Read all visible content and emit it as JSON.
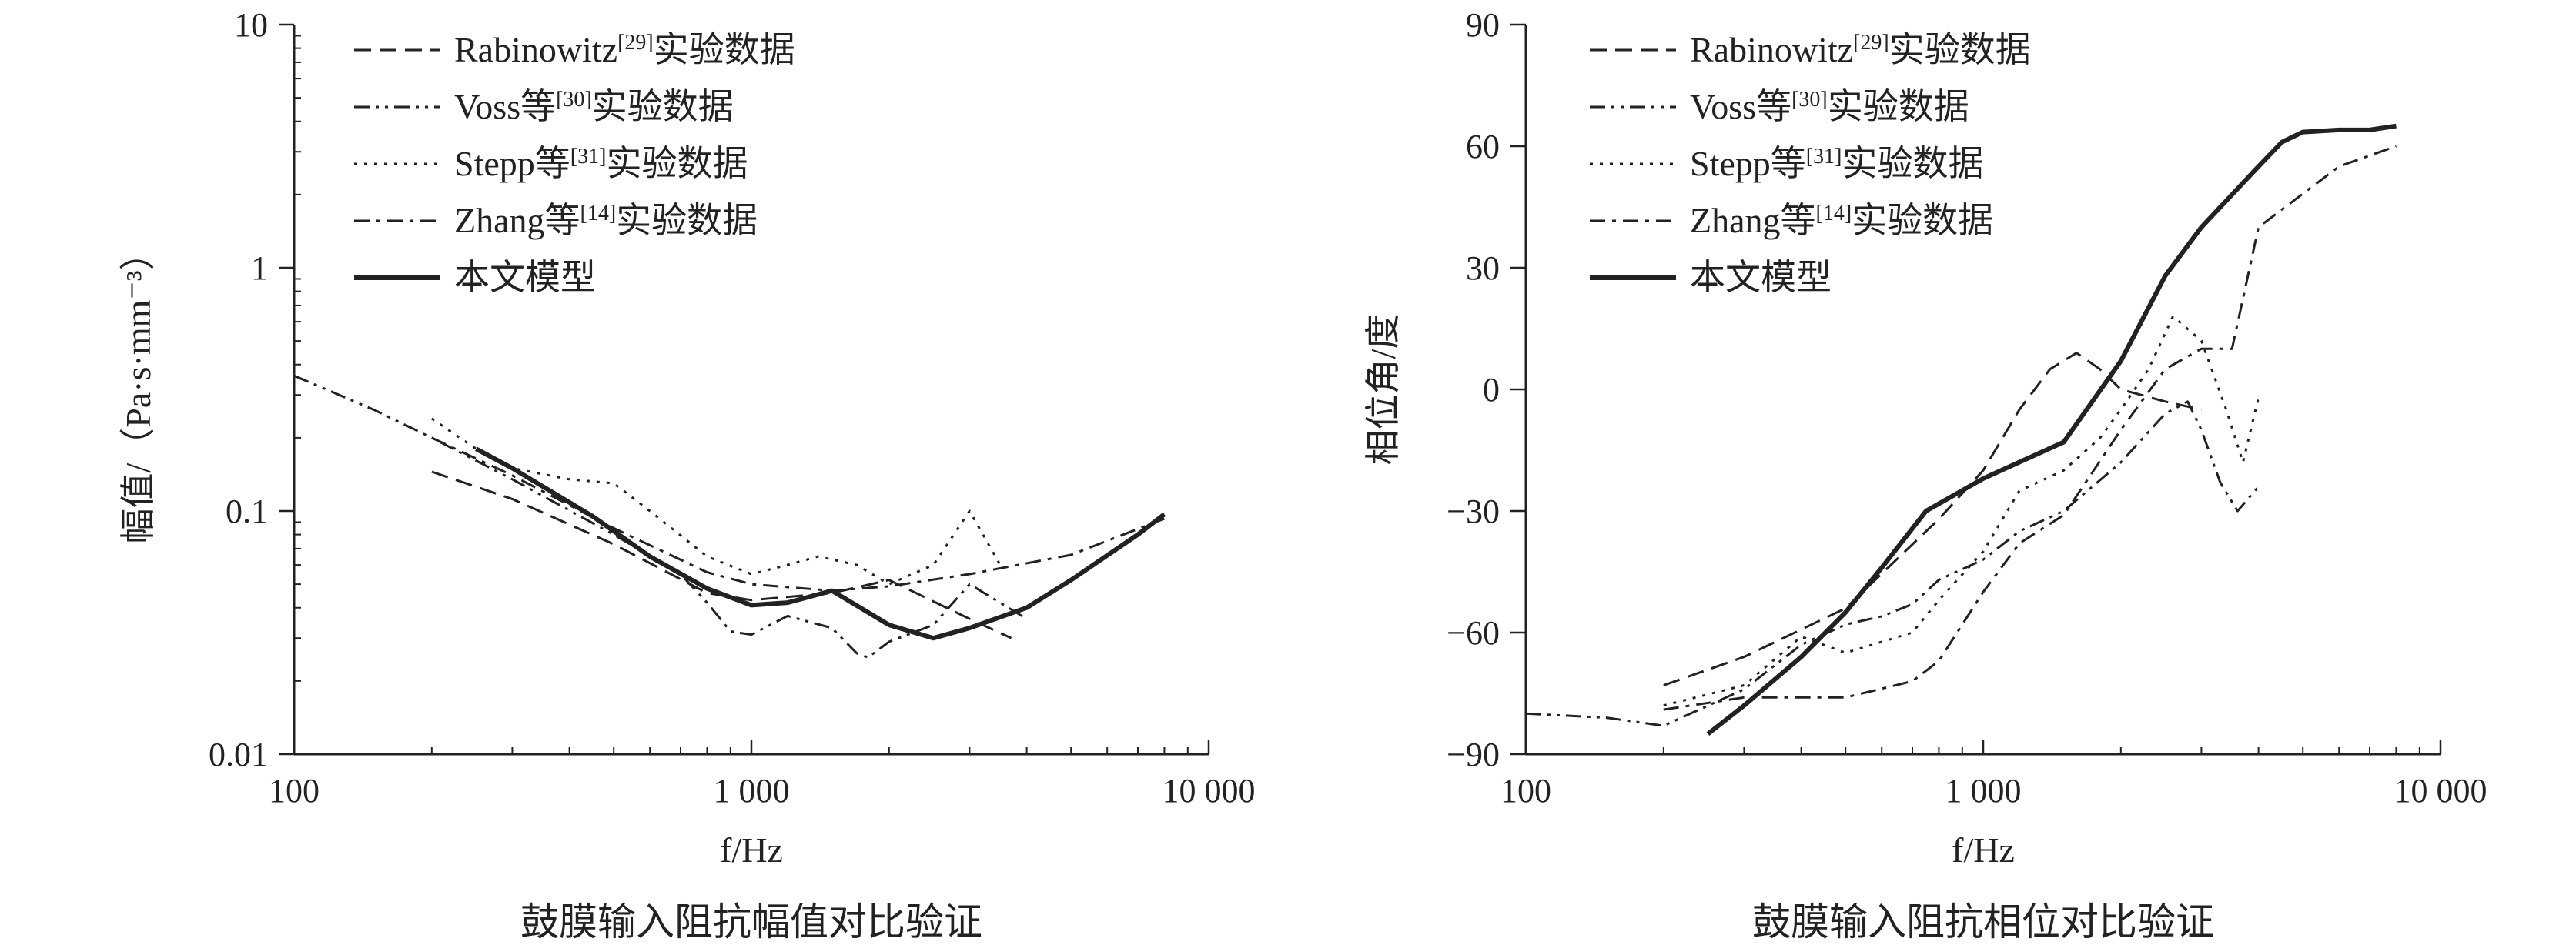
{
  "chart_data": [
    {
      "type": "line",
      "caption": "鼓膜输入阻抗幅值对比验证",
      "xlabel": "f/Hz",
      "ylabel": "幅值/（Pa·s·mm⁻³）",
      "xscale": "log",
      "yscale": "log",
      "xlim": [
        100,
        10000
      ],
      "ylim": [
        0.01,
        10
      ],
      "xticks": [
        100,
        1000,
        10000
      ],
      "xtick_labels": [
        "100",
        "1 000",
        "10 000"
      ],
      "yticks": [
        0.01,
        0.1,
        1,
        10
      ],
      "ytick_labels": [
        "0.01",
        "0.1",
        "1",
        "10"
      ],
      "grid": false,
      "legend_position": "top-left",
      "series": [
        {
          "name": "Rabinowitz[29]实验数据",
          "style": "dashed",
          "points": [
            [
              200,
              0.145
            ],
            [
              300,
              0.112
            ],
            [
              500,
              0.073
            ],
            [
              800,
              0.046
            ],
            [
              1000,
              0.043
            ],
            [
              1500,
              0.046
            ],
            [
              2000,
              0.052
            ],
            [
              3000,
              0.036
            ],
            [
              3700,
              0.03
            ]
          ]
        },
        {
          "name": "Voss等[30]实验数据",
          "style": "dash-dot-dot",
          "points": [
            [
              100,
              0.36
            ],
            [
              150,
              0.26
            ],
            [
              200,
              0.2
            ],
            [
              300,
              0.135
            ],
            [
              500,
              0.08
            ],
            [
              700,
              0.055
            ],
            [
              800,
              0.042
            ],
            [
              900,
              0.032
            ],
            [
              1000,
              0.031
            ],
            [
              1200,
              0.037
            ],
            [
              1500,
              0.033
            ],
            [
              1700,
              0.026
            ],
            [
              1800,
              0.025
            ],
            [
              2000,
              0.029
            ],
            [
              2500,
              0.034
            ],
            [
              3000,
              0.05
            ],
            [
              4000,
              0.036
            ]
          ]
        },
        {
          "name": "Stepp等[31]实验数据",
          "style": "dotted",
          "points": [
            [
              200,
              0.24
            ],
            [
              250,
              0.18
            ],
            [
              300,
              0.15
            ],
            [
              400,
              0.135
            ],
            [
              500,
              0.13
            ],
            [
              600,
              0.1
            ],
            [
              800,
              0.065
            ],
            [
              1000,
              0.055
            ],
            [
              1200,
              0.06
            ],
            [
              1400,
              0.065
            ],
            [
              1700,
              0.06
            ],
            [
              2000,
              0.05
            ],
            [
              2500,
              0.06
            ],
            [
              3000,
              0.1
            ],
            [
              3500,
              0.06
            ]
          ]
        },
        {
          "name": "Zhang等[14]实验数据",
          "style": "dash-dot",
          "points": [
            [
              200,
              0.2
            ],
            [
              300,
              0.14
            ],
            [
              500,
              0.085
            ],
            [
              800,
              0.056
            ],
            [
              1000,
              0.05
            ],
            [
              1500,
              0.047
            ],
            [
              2000,
              0.049
            ],
            [
              3000,
              0.055
            ],
            [
              5000,
              0.066
            ],
            [
              8000,
              0.093
            ]
          ]
        },
        {
          "name": "本文模型",
          "style": "solid",
          "points": [
            [
              250,
              0.18
            ],
            [
              300,
              0.15
            ],
            [
              450,
              0.095
            ],
            [
              600,
              0.065
            ],
            [
              800,
              0.048
            ],
            [
              1000,
              0.041
            ],
            [
              1200,
              0.042
            ],
            [
              1500,
              0.047
            ],
            [
              2000,
              0.034
            ],
            [
              2500,
              0.03
            ],
            [
              3000,
              0.033
            ],
            [
              4000,
              0.04
            ],
            [
              5000,
              0.052
            ],
            [
              7000,
              0.08
            ],
            [
              8000,
              0.097
            ]
          ]
        }
      ]
    },
    {
      "type": "line",
      "caption": "鼓膜输入阻抗相位对比验证",
      "xlabel": "f/Hz",
      "ylabel": "相位角/度",
      "xscale": "log",
      "yscale": "linear",
      "xlim": [
        100,
        10000
      ],
      "ylim": [
        -90,
        90
      ],
      "xticks": [
        100,
        1000,
        10000
      ],
      "xtick_labels": [
        "100",
        "1 000",
        "10 000"
      ],
      "yticks": [
        -90,
        -60,
        -30,
        0,
        30,
        60,
        90
      ],
      "ytick_labels": [
        "−90",
        "−60",
        "−30",
        "0",
        "30",
        "60",
        "90"
      ],
      "grid": false,
      "legend_position": "top-left",
      "series": [
        {
          "name": "Rabinowitz[29]实验数据",
          "style": "dashed",
          "points": [
            [
              200,
              -73
            ],
            [
              300,
              -66
            ],
            [
              500,
              -54
            ],
            [
              800,
              -32
            ],
            [
              1000,
              -20
            ],
            [
              1200,
              -5
            ],
            [
              1400,
              5
            ],
            [
              1600,
              9
            ],
            [
              1800,
              5
            ],
            [
              2000,
              0
            ],
            [
              2500,
              -3
            ],
            [
              3000,
              -5
            ]
          ]
        },
        {
          "name": "Voss等[30]实验数据",
          "style": "dash-dot-dot",
          "points": [
            [
              100,
              -80
            ],
            [
              150,
              -81
            ],
            [
              200,
              -83
            ],
            [
              300,
              -74
            ],
            [
              400,
              -63
            ],
            [
              500,
              -58
            ],
            [
              600,
              -56
            ],
            [
              700,
              -53
            ],
            [
              800,
              -47
            ],
            [
              1000,
              -42
            ],
            [
              1200,
              -35
            ],
            [
              1500,
              -30
            ],
            [
              2000,
              -18
            ],
            [
              2500,
              -6
            ],
            [
              2800,
              -3
            ],
            [
              3000,
              -10
            ],
            [
              3300,
              -23
            ],
            [
              3600,
              -30
            ],
            [
              4000,
              -24
            ]
          ]
        },
        {
          "name": "Stepp等[31]实验数据",
          "style": "dotted",
          "points": [
            [
              200,
              -78
            ],
            [
              300,
              -73
            ],
            [
              400,
              -61
            ],
            [
              500,
              -65
            ],
            [
              700,
              -60
            ],
            [
              800,
              -52
            ],
            [
              1000,
              -40
            ],
            [
              1200,
              -25
            ],
            [
              1500,
              -20
            ],
            [
              1800,
              -12
            ],
            [
              2000,
              -5
            ],
            [
              2300,
              5
            ],
            [
              2600,
              18
            ],
            [
              3000,
              12
            ],
            [
              3400,
              -5
            ],
            [
              3700,
              -18
            ],
            [
              4000,
              -2
            ]
          ]
        },
        {
          "name": "Zhang等[14]实验数据",
          "style": "dash-dot",
          "points": [
            [
              200,
              -79
            ],
            [
              300,
              -76
            ],
            [
              500,
              -76
            ],
            [
              700,
              -72
            ],
            [
              800,
              -67
            ],
            [
              1000,
              -50
            ],
            [
              1200,
              -38
            ],
            [
              1500,
              -31
            ],
            [
              2000,
              -10
            ],
            [
              2500,
              5
            ],
            [
              3000,
              10
            ],
            [
              3500,
              10
            ],
            [
              4000,
              40
            ],
            [
              6000,
              55
            ],
            [
              8000,
              60
            ]
          ]
        },
        {
          "name": "本文模型",
          "style": "solid",
          "points": [
            [
              250,
              -85
            ],
            [
              300,
              -78
            ],
            [
              400,
              -66
            ],
            [
              500,
              -55
            ],
            [
              600,
              -44
            ],
            [
              750,
              -30
            ],
            [
              1000,
              -22
            ],
            [
              1500,
              -13
            ],
            [
              2000,
              7
            ],
            [
              2500,
              28
            ],
            [
              3000,
              40
            ],
            [
              4000,
              55
            ],
            [
              4500,
              61
            ],
            [
              5000,
              63.5
            ],
            [
              6000,
              64
            ],
            [
              7000,
              64
            ],
            [
              8000,
              65
            ]
          ]
        }
      ]
    }
  ]
}
